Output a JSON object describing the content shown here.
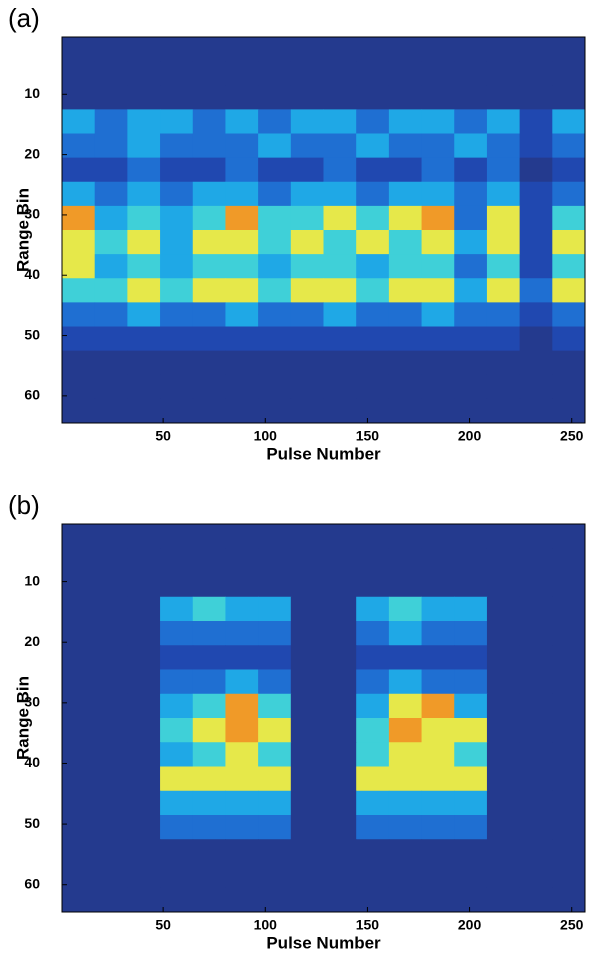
{
  "chart_data": [
    {
      "type": "heatmap",
      "panel_label": "(a)",
      "xlabel": "Pulse Number",
      "ylabel": "Range Bin",
      "xlim": [
        0.5,
        256.5
      ],
      "xticks": [
        50,
        100,
        150,
        200,
        250
      ],
      "ylim": [
        0.5,
        64.5
      ],
      "yticks": [
        10,
        20,
        30,
        40,
        50,
        60
      ],
      "y_reversed": true,
      "colormap": [
        "#243a8e",
        "#2048b0",
        "#1f6fd2",
        "#1fa8e6",
        "#3fd0d8",
        "#e6e84a",
        "#f09a28",
        "#d42020"
      ],
      "values": [
        [
          0,
          0,
          0,
          0,
          0,
          0,
          0,
          0,
          0,
          0,
          0,
          0,
          0,
          0,
          0,
          0
        ],
        [
          0,
          0,
          0,
          0,
          0,
          0,
          0,
          0,
          0,
          0,
          0,
          0,
          0,
          0,
          0,
          0
        ],
        [
          0,
          0,
          0,
          0,
          0,
          0,
          0,
          0,
          0,
          0,
          0,
          0,
          0,
          0,
          0,
          0
        ],
        [
          3,
          2,
          3,
          3,
          2,
          3,
          2,
          3,
          3,
          2,
          3,
          3,
          2,
          3,
          1,
          3
        ],
        [
          2,
          2,
          3,
          2,
          2,
          2,
          3,
          2,
          2,
          3,
          2,
          2,
          3,
          2,
          1,
          2
        ],
        [
          1,
          1,
          2,
          1,
          1,
          2,
          1,
          1,
          2,
          1,
          1,
          2,
          1,
          2,
          0,
          1
        ],
        [
          3,
          2,
          3,
          2,
          3,
          3,
          2,
          3,
          3,
          2,
          3,
          3,
          2,
          3,
          1,
          2
        ],
        [
          6,
          3,
          4,
          3,
          4,
          6,
          4,
          4,
          5,
          4,
          5,
          6,
          2,
          5,
          1,
          4
        ],
        [
          5,
          4,
          5,
          3,
          5,
          5,
          4,
          5,
          4,
          5,
          4,
          5,
          3,
          5,
          1,
          5
        ],
        [
          5,
          3,
          4,
          3,
          4,
          4,
          3,
          4,
          4,
          3,
          4,
          4,
          2,
          4,
          1,
          4
        ],
        [
          4,
          4,
          5,
          4,
          5,
          5,
          4,
          5,
          5,
          4,
          5,
          5,
          3,
          5,
          2,
          5
        ],
        [
          2,
          2,
          3,
          2,
          2,
          3,
          2,
          2,
          3,
          2,
          2,
          3,
          2,
          2,
          1,
          2
        ],
        [
          1,
          1,
          1,
          1,
          1,
          1,
          1,
          1,
          1,
          1,
          1,
          1,
          1,
          1,
          0,
          1
        ],
        [
          0,
          0,
          0,
          0,
          0,
          0,
          0,
          0,
          0,
          0,
          0,
          0,
          0,
          0,
          0,
          0
        ],
        [
          0,
          0,
          0,
          0,
          0,
          0,
          0,
          0,
          0,
          0,
          0,
          0,
          0,
          0,
          0,
          0
        ],
        [
          0,
          0,
          0,
          0,
          0,
          0,
          0,
          0,
          0,
          0,
          0,
          0,
          0,
          0,
          0,
          0
        ]
      ]
    },
    {
      "type": "heatmap",
      "panel_label": "(b)",
      "xlabel": "Pulse Number",
      "ylabel": "Range Bin",
      "xlim": [
        0.5,
        256.5
      ],
      "xticks": [
        50,
        100,
        150,
        200,
        250
      ],
      "ylim": [
        0.5,
        64.5
      ],
      "yticks": [
        10,
        20,
        30,
        40,
        50,
        60
      ],
      "y_reversed": true,
      "colormap": [
        "#243a8e",
        "#2048b0",
        "#1f6fd2",
        "#1fa8e6",
        "#3fd0d8",
        "#e6e84a",
        "#f09a28",
        "#d42020"
      ],
      "values": [
        [
          0,
          0,
          0,
          0,
          0,
          0,
          0,
          0,
          0,
          0,
          0,
          0,
          0,
          0,
          0,
          0
        ],
        [
          0,
          0,
          0,
          0,
          0,
          0,
          0,
          0,
          0,
          0,
          0,
          0,
          0,
          0,
          0,
          0
        ],
        [
          0,
          0,
          0,
          0,
          0,
          0,
          0,
          0,
          0,
          0,
          0,
          0,
          0,
          0,
          0,
          0
        ],
        [
          0,
          0,
          0,
          3,
          4,
          3,
          3,
          0,
          0,
          3,
          4,
          3,
          3,
          0,
          0,
          0
        ],
        [
          0,
          0,
          0,
          2,
          2,
          2,
          2,
          0,
          0,
          2,
          3,
          2,
          2,
          0,
          0,
          0
        ],
        [
          0,
          0,
          0,
          1,
          1,
          1,
          1,
          0,
          0,
          1,
          1,
          1,
          1,
          0,
          0,
          0
        ],
        [
          0,
          0,
          0,
          2,
          2,
          3,
          2,
          0,
          0,
          2,
          3,
          2,
          2,
          0,
          0,
          0
        ],
        [
          0,
          0,
          0,
          3,
          4,
          6,
          4,
          0,
          0,
          3,
          5,
          6,
          3,
          0,
          0,
          0
        ],
        [
          0,
          0,
          0,
          4,
          5,
          6,
          5,
          0,
          0,
          4,
          6,
          5,
          5,
          0,
          0,
          0
        ],
        [
          0,
          0,
          0,
          3,
          4,
          5,
          4,
          0,
          0,
          4,
          5,
          5,
          4,
          0,
          0,
          0
        ],
        [
          0,
          0,
          0,
          5,
          5,
          5,
          5,
          0,
          0,
          5,
          5,
          5,
          5,
          0,
          0,
          0
        ],
        [
          0,
          0,
          0,
          3,
          3,
          3,
          3,
          0,
          0,
          3,
          3,
          3,
          3,
          0,
          0,
          0
        ],
        [
          0,
          0,
          0,
          2,
          2,
          2,
          2,
          0,
          0,
          2,
          2,
          2,
          2,
          0,
          0,
          0
        ],
        [
          0,
          0,
          0,
          0,
          0,
          0,
          0,
          0,
          0,
          0,
          0,
          0,
          0,
          0,
          0,
          0
        ],
        [
          0,
          0,
          0,
          0,
          0,
          0,
          0,
          0,
          0,
          0,
          0,
          0,
          0,
          0,
          0,
          0
        ],
        [
          0,
          0,
          0,
          0,
          0,
          0,
          0,
          0,
          0,
          0,
          0,
          0,
          0,
          0,
          0,
          0
        ]
      ]
    }
  ]
}
